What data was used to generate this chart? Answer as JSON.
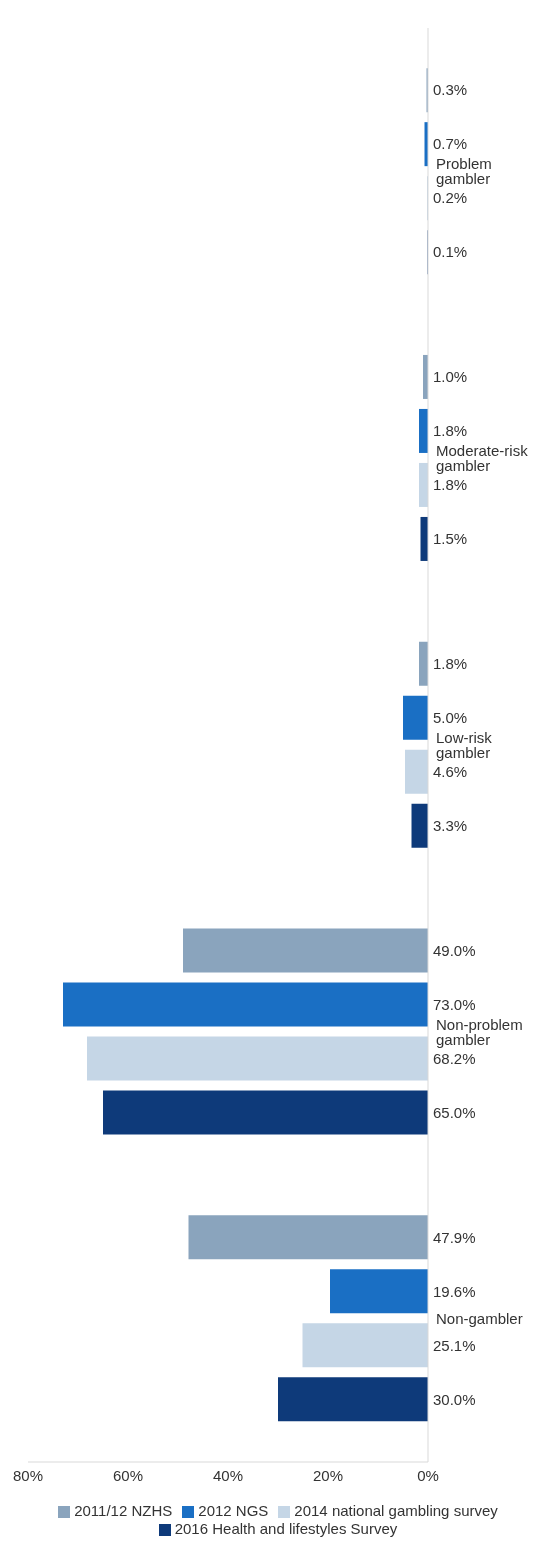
{
  "chart_data": {
    "type": "bar",
    "orientation": "horizontal",
    "categories": [
      "Problem gambler",
      "Moderate-risk gambler",
      "Low-risk gambler",
      "Non-problem gambler",
      "Non-gambler"
    ],
    "series": [
      {
        "name": "2011/12 NZHS",
        "color": "#8aa4bd",
        "values": [
          0.3,
          1.0,
          1.8,
          49.0,
          47.9
        ],
        "value_labels": [
          "0.3%",
          "1.0%",
          "1.8%",
          "49.0%",
          "47.9%"
        ]
      },
      {
        "name": "2012 NGS",
        "color": "#1a6fc4",
        "values": [
          0.7,
          1.8,
          5.0,
          73.0,
          19.6
        ],
        "value_labels": [
          "0.7%",
          "1.8%",
          "5.0%",
          "73.0%",
          "19.6%"
        ]
      },
      {
        "name": "2014 national gambling survey",
        "color": "#c5d6e6",
        "values": [
          0.2,
          1.8,
          4.6,
          68.2,
          25.1
        ],
        "value_labels": [
          "0.2%",
          "1.8%",
          "4.6%",
          "68.2%",
          "25.1%"
        ]
      },
      {
        "name": "2016 Health and lifestyles Survey",
        "color": "#0e3a7a",
        "values": [
          0.1,
          1.5,
          3.3,
          65.0,
          30.0
        ],
        "value_labels": [
          "0.1%",
          "1.5%",
          "3.3%",
          "65.0%",
          "30.0%"
        ]
      }
    ],
    "xlim": [
      80,
      0
    ],
    "xticks": [
      {
        "value": 80,
        "label": "80%"
      },
      {
        "value": 60,
        "label": "60%"
      },
      {
        "value": 40,
        "label": "40%"
      },
      {
        "value": 20,
        "label": "20%"
      },
      {
        "value": 0,
        "label": "0%"
      }
    ],
    "legend": "bottom"
  }
}
